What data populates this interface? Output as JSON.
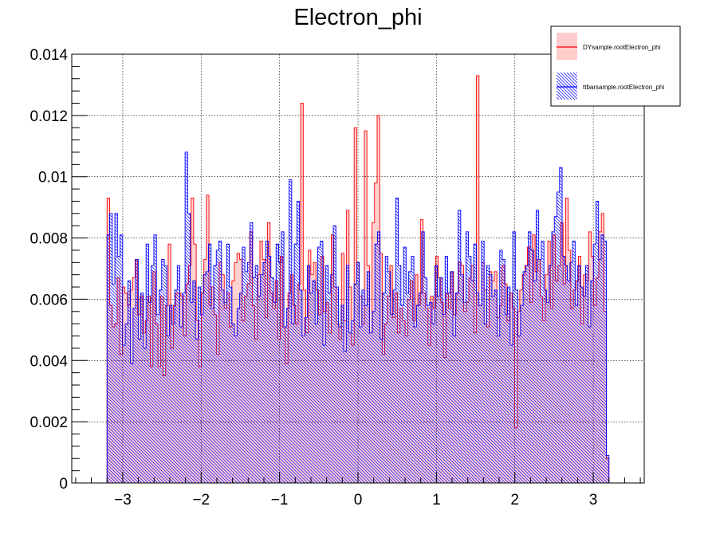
{
  "chart_data": {
    "type": "histogram",
    "title": "Electron_phi",
    "xlabel": "",
    "ylabel": "",
    "xlim": [
      -3.65,
      3.65
    ],
    "ylim": [
      0,
      0.014
    ],
    "grid": true,
    "legend_position": "top-right",
    "x_ticks": [
      {
        "value": -3,
        "label": "−3"
      },
      {
        "value": -2,
        "label": "−2"
      },
      {
        "value": -1,
        "label": "−1"
      },
      {
        "value": 0,
        "label": "0"
      },
      {
        "value": 1,
        "label": "1"
      },
      {
        "value": 2,
        "label": "2"
      },
      {
        "value": 3,
        "label": "3"
      }
    ],
    "y_ticks": [
      {
        "value": 0,
        "label": "0"
      },
      {
        "value": 0.002,
        "label": "0.002"
      },
      {
        "value": 0.004,
        "label": "0.004"
      },
      {
        "value": 0.006,
        "label": "0.006"
      },
      {
        "value": 0.008,
        "label": "0.008"
      },
      {
        "value": 0.01,
        "label": "0.01"
      },
      {
        "value": 0.012,
        "label": "0.012"
      },
      {
        "value": 0.014,
        "label": "0.014"
      }
    ],
    "bin_edges_range": [
      -3.2,
      3.2
    ],
    "series": [
      {
        "name": "DYsample.rootElectron_phi",
        "color": "#ff0000",
        "fill_style": "solid-light",
        "values": [
          0.0093,
          0.0058,
          0.0051,
          0.0052,
          0.0067,
          0.0042,
          0.0064,
          0.0062,
          0.0058,
          0.0063,
          0.0067,
          0.0073,
          0.0055,
          0.0061,
          0.0049,
          0.0053,
          0.0061,
          0.0038,
          0.0069,
          0.0052,
          0.0038,
          0.0061,
          0.0035,
          0.0058,
          0.0078,
          0.0044,
          0.0058,
          0.0062,
          0.0062,
          0.0061,
          0.0048,
          0.0065,
          0.0071,
          0.0093,
          0.0078,
          0.0053,
          0.0038,
          0.0062,
          0.0073,
          0.0094,
          0.0058,
          0.0064,
          0.0055,
          0.0042,
          0.0072,
          0.0068,
          0.0057,
          0.0062,
          0.0051,
          0.0066,
          0.0072,
          0.0075,
          0.0073,
          0.0053,
          0.0061,
          0.0065,
          0.0082,
          0.0058,
          0.0047,
          0.0068,
          0.0079,
          0.0073,
          0.0054,
          0.0085,
          0.0062,
          0.0057,
          0.0066,
          0.0047,
          0.0074,
          0.0051,
          0.0039,
          0.0062,
          0.0068,
          0.0058,
          0.0052,
          0.0065,
          0.0124,
          0.0063,
          0.0049,
          0.0076,
          0.0068,
          0.0072,
          0.0063,
          0.0055,
          0.0074,
          0.0056,
          0.0059,
          0.0049,
          0.0081,
          0.0064,
          0.0052,
          0.0047,
          0.0075,
          0.0053,
          0.0089,
          0.0064,
          0.0045,
          0.0116,
          0.0072,
          0.0061,
          0.0052,
          0.0115,
          0.0071,
          0.0049,
          0.0085,
          0.0098,
          0.012,
          0.0075,
          0.0042,
          0.0052,
          0.0061,
          0.0071,
          0.0054,
          0.0062,
          0.0049,
          0.0057,
          0.0053,
          0.0048,
          0.006,
          0.0066,
          0.0053,
          0.0068,
          0.0058,
          0.0086,
          0.0062,
          0.0057,
          0.0045,
          0.0061,
          0.0057,
          0.0074,
          0.0067,
          0.0059,
          0.0041,
          0.0062,
          0.0057,
          0.0069,
          0.0055,
          0.0062,
          0.0072,
          0.0071,
          0.0056,
          0.0059,
          0.0067,
          0.0071,
          0.0049,
          0.0133,
          0.0058,
          0.0072,
          0.0063,
          0.0051,
          0.0069,
          0.0066,
          0.0069,
          0.0054,
          0.0058,
          0.0071,
          0.0065,
          0.0053,
          0.0062,
          0.0057,
          0.0018,
          0.0056,
          0.0063,
          0.0068,
          0.0071,
          0.0077,
          0.0059,
          0.0081,
          0.0069,
          0.0073,
          0.0061,
          0.0053,
          0.0068,
          0.0079,
          0.0057,
          0.0081,
          0.0066,
          0.0071,
          0.0085,
          0.0065,
          0.0093,
          0.0076,
          0.0057,
          0.0063,
          0.0066,
          0.0074,
          0.0052,
          0.0068,
          0.0066,
          0.0082,
          0.0074,
          0.0058,
          0.0067,
          0.0082,
          0.0088,
          0.0056,
          0.0008
        ]
      },
      {
        "name": "ttbarsample.rootElectron_phi",
        "color": "#0000ff",
        "fill_style": "hatched",
        "values": [
          0.0081,
          0.0088,
          0.0065,
          0.0088,
          0.0074,
          0.0081,
          0.0045,
          0.0052,
          0.0066,
          0.0039,
          0.0057,
          0.0073,
          0.0047,
          0.0062,
          0.0044,
          0.0078,
          0.0059,
          0.0071,
          0.0081,
          0.0055,
          0.0063,
          0.0073,
          0.0071,
          0.0048,
          0.0058,
          0.0052,
          0.0063,
          0.0071,
          0.0051,
          0.0062,
          0.0108,
          0.0088,
          0.0059,
          0.0066,
          0.0047,
          0.0064,
          0.0055,
          0.0068,
          0.0069,
          0.0078,
          0.0057,
          0.0071,
          0.0076,
          0.0079,
          0.0063,
          0.0059,
          0.0078,
          0.0064,
          0.0052,
          0.0048,
          0.0057,
          0.0062,
          0.0077,
          0.0069,
          0.0072,
          0.0085,
          0.0067,
          0.0071,
          0.0061,
          0.0068,
          0.0072,
          0.0079,
          0.0074,
          0.0067,
          0.0059,
          0.0078,
          0.0072,
          0.0082,
          0.0051,
          0.0057,
          0.0099,
          0.0052,
          0.0078,
          0.0092,
          0.0063,
          0.0048,
          0.0054,
          0.0071,
          0.0062,
          0.0066,
          0.0052,
          0.0077,
          0.0079,
          0.0045,
          0.0071,
          0.0062,
          0.0068,
          0.0084,
          0.0064,
          0.0051,
          0.0058,
          0.0043,
          0.0071,
          0.0049,
          0.0053,
          0.0065,
          0.0072,
          0.0051,
          0.0063,
          0.0058,
          0.0069,
          0.0049,
          0.0056,
          0.0078,
          0.0082,
          0.0047,
          0.0062,
          0.0074,
          0.0069,
          0.0055,
          0.0063,
          0.0093,
          0.0071,
          0.0058,
          0.0077,
          0.0062,
          0.0069,
          0.0074,
          0.0051,
          0.0058,
          0.0062,
          0.0082,
          0.0067,
          0.0058,
          0.0059,
          0.0052,
          0.0071,
          0.0061,
          0.0067,
          0.0055,
          0.0074,
          0.0062,
          0.0069,
          0.0048,
          0.0062,
          0.0089,
          0.0068,
          0.0059,
          0.0082,
          0.0074,
          0.0066,
          0.0078,
          0.0062,
          0.0058,
          0.0079,
          0.0052,
          0.0071,
          0.0068,
          0.0061,
          0.0063,
          0.0048,
          0.0076,
          0.0073,
          0.0055,
          0.0064,
          0.0045,
          0.0082,
          0.0063,
          0.0048,
          0.0058,
          0.0069,
          0.0071,
          0.0082,
          0.0076,
          0.0066,
          0.0089,
          0.0073,
          0.0079,
          0.0063,
          0.0059,
          0.0071,
          0.0082,
          0.0087,
          0.0095,
          0.0103,
          0.0074,
          0.0071,
          0.0066,
          0.0072,
          0.0079,
          0.0058,
          0.0071,
          0.0064,
          0.0061,
          0.0071,
          0.0051,
          0.0066,
          0.0078,
          0.0092,
          0.0073,
          0.0081,
          0.0079,
          0.0009
        ]
      }
    ]
  }
}
